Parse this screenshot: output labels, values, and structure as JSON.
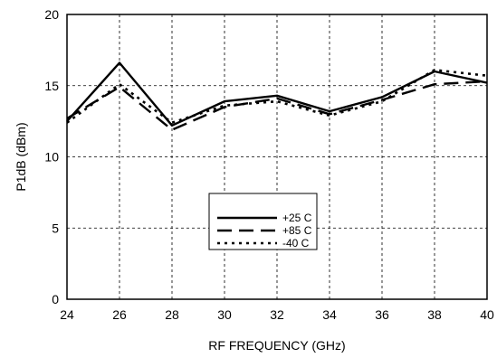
{
  "chart_data": {
    "type": "line",
    "title": "",
    "xlabel": "RF FREQUENCY (GHz)",
    "ylabel": "P1dB (dBm)",
    "xlim": [
      24,
      40
    ],
    "ylim": [
      0,
      20
    ],
    "xticks": [
      24,
      26,
      28,
      30,
      32,
      34,
      36,
      38,
      40
    ],
    "yticks": [
      0,
      5,
      10,
      15,
      20
    ],
    "grid": true,
    "legend_position": "center",
    "series": [
      {
        "name": "+25 C",
        "style": "solid",
        "x": [
          24,
          26,
          28,
          30,
          32,
          34,
          36,
          38,
          40
        ],
        "y": [
          12.5,
          16.6,
          12.2,
          13.9,
          14.3,
          13.2,
          14.2,
          16.0,
          15.2
        ]
      },
      {
        "name": "+85 C",
        "style": "long-dash",
        "x": [
          24,
          26,
          28,
          30,
          32,
          34,
          36,
          38,
          40
        ],
        "y": [
          12.7,
          14.9,
          11.9,
          13.5,
          14.1,
          13.0,
          14.0,
          15.1,
          15.3
        ]
      },
      {
        "name": "-40 C",
        "style": "dotted",
        "x": [
          24,
          26,
          28,
          30,
          32,
          34,
          36,
          38,
          40
        ],
        "y": [
          12.4,
          15.1,
          12.4,
          13.6,
          13.9,
          12.9,
          13.9,
          16.1,
          15.7
        ]
      }
    ]
  }
}
